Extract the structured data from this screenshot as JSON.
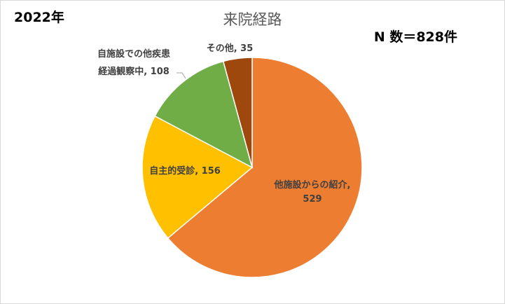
{
  "header": {
    "year": "2022年",
    "n_count": "N 数＝828件"
  },
  "chart_data": {
    "type": "pie",
    "title": "来院経路",
    "slices": [
      {
        "label": "他施設からの紹介",
        "value": 529,
        "color": "#ED7D31"
      },
      {
        "label": "自主的受診",
        "value": 156,
        "color": "#FFC000"
      },
      {
        "label": "自施設での他疾患経過観察中",
        "value": 108,
        "color": "#70AD47"
      },
      {
        "label": "その他",
        "value": 35,
        "color": "#9E480E"
      }
    ],
    "label_lines": [
      [
        "他施設からの紹介,",
        "529"
      ],
      [
        "自主的受診, 156"
      ],
      [
        "自施設での他疾患",
        "経過観察中, 108"
      ],
      [
        "その他, 35"
      ]
    ]
  }
}
